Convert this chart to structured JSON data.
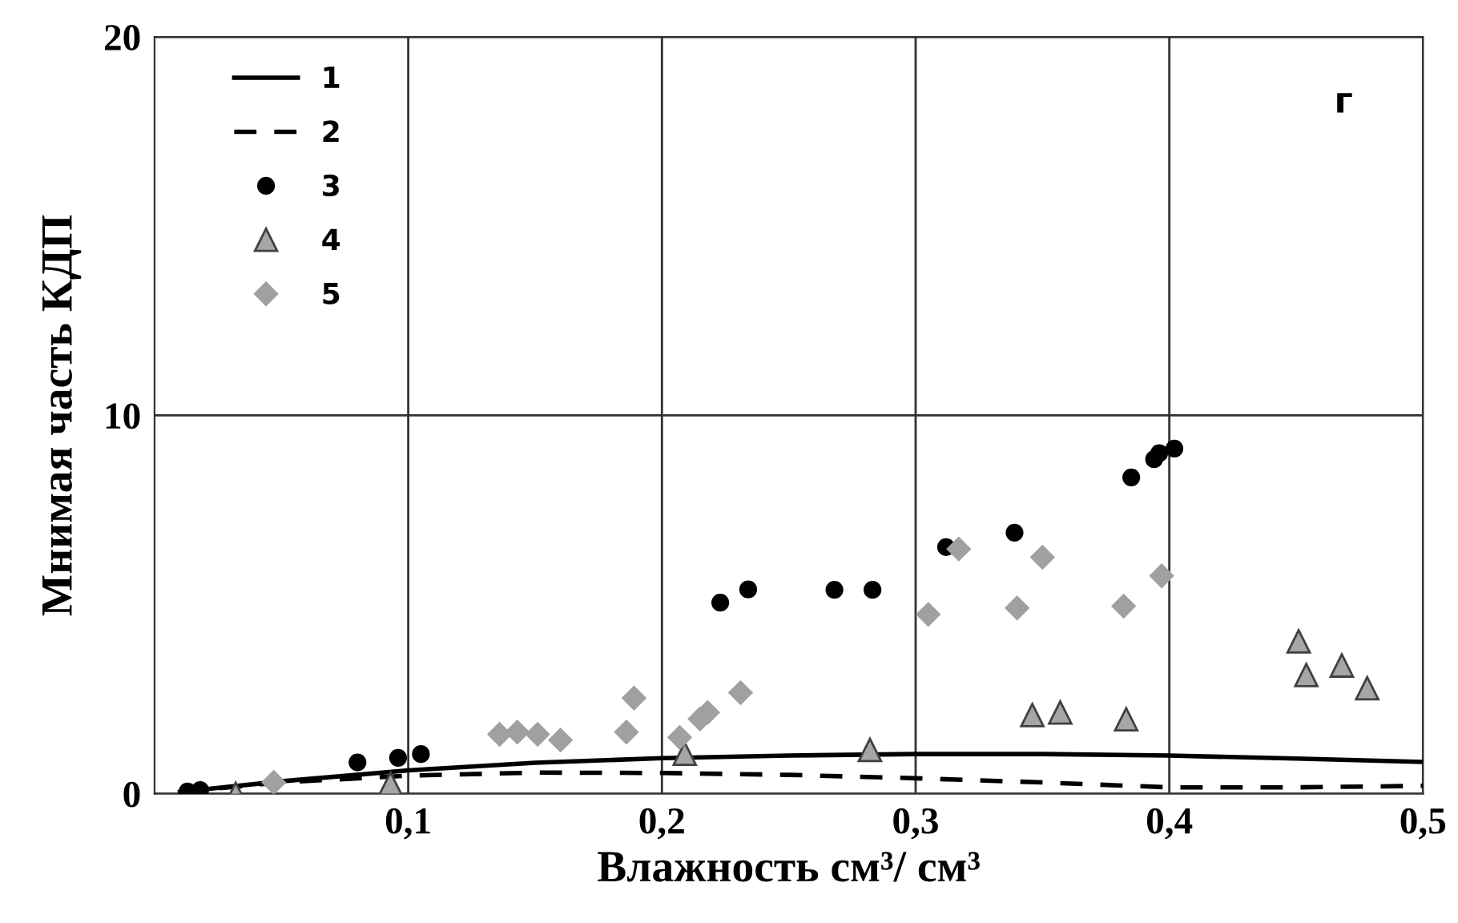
{
  "chart_data": {
    "type": "scatter",
    "xlabel": "Влажность см³/ см³",
    "ylabel": "Мнимая часть КДП",
    "annotations": [
      "г"
    ],
    "xlim": [
      0,
      0.5
    ],
    "xticks": [
      {
        "value": 0.1,
        "label": "0,1"
      },
      {
        "value": 0.2,
        "label": "0,2"
      },
      {
        "value": 0.3,
        "label": "0,3"
      },
      {
        "value": 0.4,
        "label": "0,4"
      },
      {
        "value": 0.5,
        "label": "0,5"
      }
    ],
    "ylim": [
      0,
      20
    ],
    "yticks": [
      0,
      10,
      20
    ],
    "grid": true,
    "legend": "top left",
    "series": [
      {
        "name": "1",
        "type": "line",
        "line_style": "solid",
        "color": "#000000",
        "x": [
          0.01,
          0.05,
          0.1,
          0.15,
          0.2,
          0.25,
          0.3,
          0.35,
          0.4,
          0.45,
          0.5
        ],
        "values": [
          0.05,
          0.33,
          0.62,
          0.82,
          0.94,
          1.01,
          1.05,
          1.05,
          1.01,
          0.93,
          0.84
        ]
      },
      {
        "name": "2",
        "type": "line",
        "line_style": "dashed",
        "color": "#000000",
        "x": [
          0.01,
          0.05,
          0.1,
          0.15,
          0.2,
          0.25,
          0.3,
          0.35,
          0.4,
          0.45,
          0.5
        ],
        "values": [
          0.05,
          0.3,
          0.48,
          0.56,
          0.55,
          0.5,
          0.41,
          0.3,
          0.17,
          0.17,
          0.21
        ]
      },
      {
        "name": "3",
        "marker": "circle",
        "color": "#000000",
        "x": [
          0.013,
          0.018,
          0.08,
          0.096,
          0.105,
          0.223,
          0.234,
          0.268,
          0.283,
          0.312,
          0.339,
          0.385,
          0.394,
          0.396,
          0.402
        ],
        "values": [
          0.06,
          0.1,
          0.83,
          0.95,
          1.05,
          5.05,
          5.4,
          5.39,
          5.39,
          6.52,
          6.9,
          8.36,
          8.84,
          9.0,
          9.12
        ]
      },
      {
        "name": "4",
        "marker": "triangle",
        "color": "#a6a6a6",
        "x": [
          0.032,
          0.093,
          0.209,
          0.282,
          0.346,
          0.357,
          0.383,
          0.451,
          0.454,
          0.468,
          0.478
        ],
        "values": [
          0.0,
          0.27,
          1.06,
          1.16,
          2.08,
          2.15,
          1.97,
          4.03,
          3.14,
          3.39,
          2.79
        ]
      },
      {
        "name": "5",
        "marker": "diamond",
        "color": "#a0a0a0",
        "x": [
          0.047,
          0.136,
          0.143,
          0.151,
          0.16,
          0.186,
          0.189,
          0.207,
          0.215,
          0.218,
          0.231,
          0.305,
          0.317,
          0.34,
          0.35,
          0.382,
          0.397
        ],
        "values": [
          0.3,
          1.57,
          1.63,
          1.57,
          1.42,
          1.63,
          2.53,
          1.49,
          1.98,
          2.15,
          2.67,
          4.74,
          6.47,
          4.91,
          6.25,
          4.96,
          5.76
        ]
      }
    ]
  }
}
